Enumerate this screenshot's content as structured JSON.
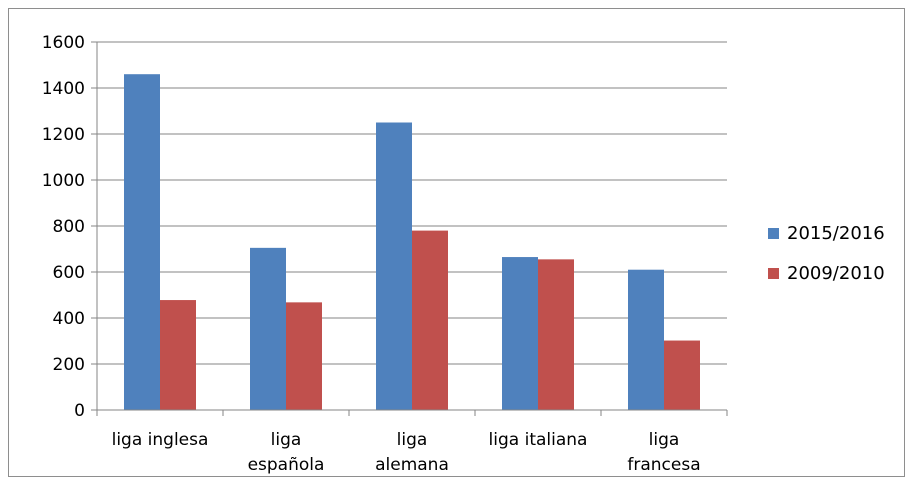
{
  "chart_data": {
    "type": "bar",
    "categories": [
      [
        "liga inglesa"
      ],
      [
        "liga",
        "española"
      ],
      [
        "liga",
        "alemana"
      ],
      [
        "liga italiana"
      ],
      [
        "liga",
        "francesa"
      ]
    ],
    "series": [
      {
        "name": "2015/2016",
        "color": "#4f81bd",
        "values": [
          1460,
          705,
          1250,
          665,
          610
        ]
      },
      {
        "name": "2009/2010",
        "color": "#c0504d",
        "values": [
          478,
          468,
          780,
          655,
          302
        ]
      }
    ],
    "ylim": [
      0,
      1600
    ],
    "yticks": [
      0,
      200,
      400,
      600,
      800,
      1000,
      1200,
      1400,
      1600
    ],
    "grid": true,
    "legend": "right"
  }
}
